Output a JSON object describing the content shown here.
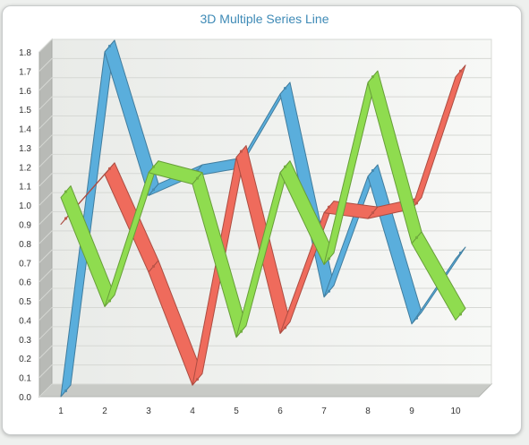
{
  "chart_data": {
    "type": "line",
    "title": "3D Multiple Series Line",
    "x": [
      1,
      2,
      3,
      4,
      5,
      6,
      7,
      8,
      9,
      10
    ],
    "ylim": [
      0,
      1.8
    ],
    "yticks": [
      0.0,
      0.1,
      0.2,
      0.3,
      0.4,
      0.5,
      0.6,
      0.7,
      0.8,
      0.9,
      1.0,
      1.1,
      1.2,
      1.3,
      1.4,
      1.5,
      1.6,
      1.7,
      1.8
    ],
    "ytick_labels": [
      "0.0",
      "0.1",
      "0.2",
      "0.3",
      "0.4",
      "0.5",
      "0.6",
      "0.7",
      "0.8",
      "0.9",
      "1.0",
      "1.1",
      "1.2",
      "1.3",
      "1.4",
      "1.5",
      "1.6",
      "1.7",
      "1.8"
    ],
    "grid": true,
    "legend": "none",
    "series": [
      {
        "color": "#5aaedc",
        "values": [
          0.0,
          1.8,
          1.05,
          1.15,
          1.19,
          1.58,
          0.52,
          1.15,
          0.38,
          0.72
        ]
      },
      {
        "color": "#ef6b5c",
        "values": [
          0.9,
          1.16,
          0.65,
          0.06,
          1.25,
          0.33,
          0.96,
          0.93,
          0.98,
          1.67
        ]
      },
      {
        "color": "#8fdc4f",
        "values": [
          1.04,
          0.47,
          1.17,
          1.11,
          0.31,
          1.17,
          0.69,
          1.64,
          0.8,
          0.4
        ]
      }
    ]
  }
}
